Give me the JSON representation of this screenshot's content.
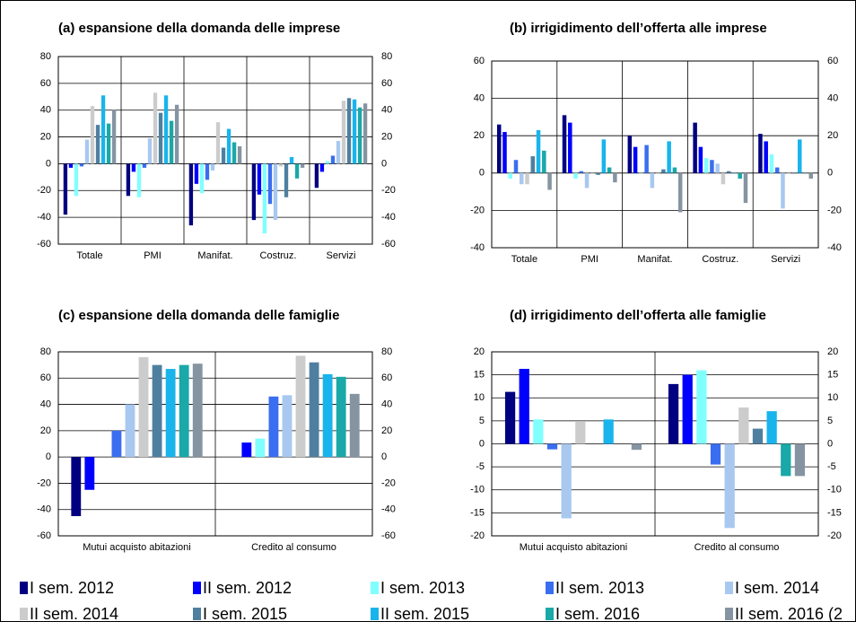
{
  "legend": [
    {
      "name": "I sem. 2012",
      "color": "#000080"
    },
    {
      "name": "II sem. 2012",
      "color": "#0000ff"
    },
    {
      "name": "I sem. 2013",
      "color": "#80ffff"
    },
    {
      "name": "II sem. 2013",
      "color": "#3a6ef0"
    },
    {
      "name": "I sem. 2014",
      "color": "#a8c8f0"
    },
    {
      "name": "II sem. 2014",
      "color": "#cccccc"
    },
    {
      "name": "I sem. 2015",
      "color": "#4f7f9f"
    },
    {
      "name": "II sem. 2015",
      "color": "#19b4ec"
    },
    {
      "name": "I sem. 2016",
      "color": "#1aa8a8"
    },
    {
      "name": "II sem. 2016 (2",
      "color": "#8694a2"
    }
  ],
  "chart_data": [
    {
      "type": "bar",
      "title": "(a) espansione della domanda delle imprese",
      "categories": [
        "Totale",
        "PMI",
        "Manifat.",
        "Costruz.",
        "Servizi"
      ],
      "ylim": [
        -60,
        80
      ],
      "yticks": [
        -60,
        -40,
        -20,
        0,
        20,
        40,
        60,
        80
      ],
      "grid": true,
      "series": [
        {
          "values": [
            -38,
            -24,
            -46,
            -42,
            -18
          ]
        },
        {
          "values": [
            -3,
            -6,
            -15,
            -23,
            -6
          ]
        },
        {
          "values": [
            -24,
            -25,
            -22,
            -52,
            2
          ]
        },
        {
          "values": [
            -2,
            -3,
            -12,
            -30,
            6
          ]
        },
        {
          "values": [
            18,
            19,
            -5,
            -42,
            17
          ]
        },
        {
          "values": [
            43,
            53,
            31,
            -2,
            47
          ]
        },
        {
          "values": [
            29,
            38,
            12,
            -25,
            49
          ]
        },
        {
          "values": [
            51,
            51,
            26,
            5,
            48
          ]
        },
        {
          "values": [
            30,
            32,
            16,
            -11,
            42
          ]
        },
        {
          "values": [
            40,
            44,
            13,
            -3,
            45
          ]
        }
      ]
    },
    {
      "type": "bar",
      "title": "(b) irrigidimento dell’offerta alle imprese",
      "categories": [
        "Totale",
        "PMI",
        "Manifat.",
        "Costruz.",
        "Servizi"
      ],
      "ylim": [
        -40,
        60
      ],
      "yticks": [
        -40,
        -20,
        0,
        20,
        40,
        60
      ],
      "grid": true,
      "series": [
        {
          "values": [
            26,
            31,
            20,
            27,
            21
          ]
        },
        {
          "values": [
            22,
            27,
            14,
            14,
            17
          ]
        },
        {
          "values": [
            -3,
            -3,
            0,
            8,
            10
          ]
        },
        {
          "values": [
            7,
            1,
            15,
            7,
            3
          ]
        },
        {
          "values": [
            -6,
            -8,
            -8,
            5,
            -19
          ]
        },
        {
          "values": [
            -6,
            0,
            0,
            -6,
            0
          ]
        },
        {
          "values": [
            9,
            -1,
            2,
            1,
            0
          ]
        },
        {
          "values": [
            23,
            18,
            17,
            0,
            18
          ]
        },
        {
          "values": [
            12,
            3,
            3,
            -3,
            0
          ]
        },
        {
          "values": [
            -9,
            -5,
            -21,
            -16,
            -3
          ]
        }
      ]
    },
    {
      "type": "bar",
      "title": "(c) espansione della domanda delle famiglie",
      "categories": [
        "Mutui acquisto abitazioni",
        "Credito al consumo"
      ],
      "ylim": [
        -60,
        80
      ],
      "yticks": [
        -60,
        -40,
        -20,
        0,
        20,
        40,
        60,
        80
      ],
      "grid": true,
      "series": [
        {
          "values": [
            -45,
            null
          ]
        },
        {
          "values": [
            -25,
            11
          ]
        },
        {
          "values": [
            null,
            14
          ]
        },
        {
          "values": [
            20,
            46
          ]
        },
        {
          "values": [
            40,
            47
          ]
        },
        {
          "values": [
            76,
            77
          ]
        },
        {
          "values": [
            70,
            72
          ]
        },
        {
          "values": [
            67,
            63
          ]
        },
        {
          "values": [
            70,
            61
          ]
        },
        {
          "values": [
            71,
            48
          ]
        }
      ]
    },
    {
      "type": "bar",
      "title": "(d) irrigidimento dell’offerta alle famiglie",
      "categories": [
        "Mutui acquisto abitazioni",
        "Credito al consumo"
      ],
      "ylim": [
        -20,
        20
      ],
      "yticks": [
        -20,
        -15,
        -10,
        -5,
        0,
        5,
        10,
        15,
        20
      ],
      "grid": true,
      "series": [
        {
          "values": [
            11.3,
            13
          ]
        },
        {
          "values": [
            16.3,
            15
          ]
        },
        {
          "values": [
            5.3,
            16
          ]
        },
        {
          "values": [
            -1.2,
            -4.5
          ]
        },
        {
          "values": [
            -16.2,
            -18.3
          ]
        },
        {
          "values": [
            4.8,
            7.9
          ]
        },
        {
          "values": [
            null,
            3.3
          ]
        },
        {
          "values": [
            5.3,
            7.1
          ]
        },
        {
          "values": [
            null,
            -7
          ]
        },
        {
          "values": [
            -1.3,
            -7
          ]
        }
      ]
    }
  ]
}
